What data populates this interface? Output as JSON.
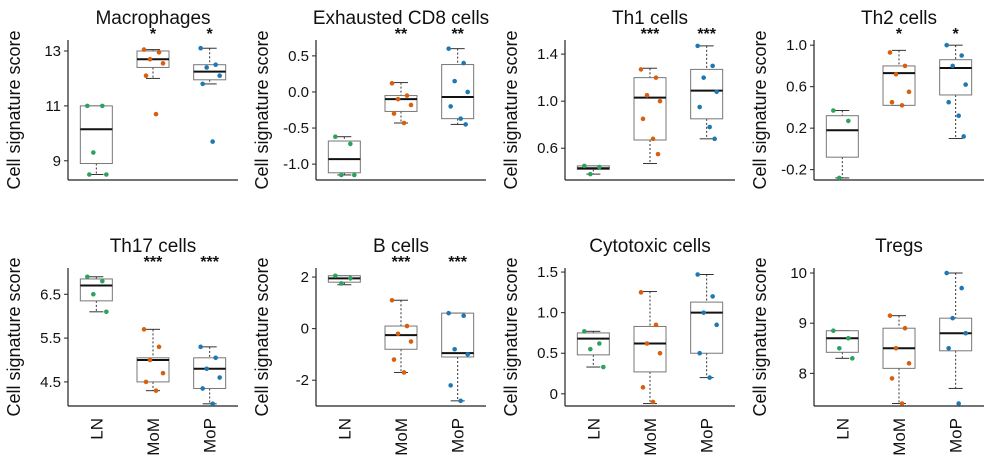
{
  "figure": {
    "y_axis_label": "Cell signature score",
    "categories": [
      "LN",
      "MoM",
      "MoP"
    ],
    "group_colors": {
      "LN": "#2ca25f",
      "MoM": "#d95f0e",
      "MoP": "#1f78b4"
    }
  },
  "chart_data": [
    {
      "type": "box",
      "title": "Macrophages",
      "ylabel": "Cell signature score",
      "ylim": [
        8.3,
        13.4
      ],
      "yticks": [
        "9",
        "11",
        "13"
      ],
      "significance": [
        "",
        "*",
        "*"
      ],
      "boxes": [
        {
          "category": "LN",
          "min": 8.5,
          "q1": 8.9,
          "median": 10.15,
          "q3": 11.0,
          "max": 11.0,
          "points": [
            11.0,
            11.0,
            9.3,
            8.5,
            8.5
          ]
        },
        {
          "category": "MoM",
          "min": 12.0,
          "q1": 12.4,
          "median": 12.7,
          "q3": 13.0,
          "max": 13.05,
          "points": [
            13.05,
            12.95,
            12.7,
            12.55,
            12.1,
            10.7
          ]
        },
        {
          "category": "MoP",
          "min": 11.8,
          "q1": 11.95,
          "median": 12.25,
          "q3": 12.5,
          "max": 13.1,
          "points": [
            13.1,
            12.5,
            12.4,
            12.1,
            11.8,
            9.7
          ]
        }
      ]
    },
    {
      "type": "box",
      "title": "Exhausted CD8 cells",
      "ylabel": "Cell signature score",
      "ylim": [
        -1.22,
        0.72
      ],
      "yticks": [
        "-1.0",
        "-0.5",
        "0.0",
        "0.5"
      ],
      "significance": [
        "",
        "**",
        "**"
      ],
      "boxes": [
        {
          "category": "LN",
          "min": -1.15,
          "q1": -1.12,
          "median": -0.93,
          "q3": -0.68,
          "max": -0.62,
          "points": [
            -0.62,
            -0.72,
            -1.15,
            -1.15
          ]
        },
        {
          "category": "MoM",
          "min": -0.43,
          "q1": -0.27,
          "median": -0.1,
          "q3": -0.05,
          "max": 0.13,
          "points": [
            0.12,
            -0.05,
            -0.1,
            -0.18,
            -0.3,
            -0.43
          ]
        },
        {
          "category": "MoP",
          "min": -0.45,
          "q1": -0.37,
          "median": -0.07,
          "q3": 0.38,
          "max": 0.6,
          "points": [
            0.6,
            0.4,
            0.15,
            0.0,
            -0.2,
            -0.37,
            -0.45
          ]
        }
      ]
    },
    {
      "type": "box",
      "title": "Th1 cells",
      "ylabel": "Cell signature score",
      "ylim": [
        0.33,
        1.52
      ],
      "yticks": [
        "0.6",
        "1.0",
        "1.4"
      ],
      "significance": [
        "",
        "***",
        "***"
      ],
      "boxes": [
        {
          "category": "LN",
          "min": 0.38,
          "q1": 0.42,
          "median": 0.43,
          "q3": 0.45,
          "max": 0.45,
          "points": [
            0.45,
            0.44,
            0.38
          ]
        },
        {
          "category": "MoM",
          "min": 0.47,
          "q1": 0.67,
          "median": 1.03,
          "q3": 1.2,
          "max": 1.28,
          "points": [
            1.27,
            1.2,
            1.05,
            1.0,
            0.85,
            0.68,
            0.55
          ]
        },
        {
          "category": "MoP",
          "min": 0.68,
          "q1": 0.85,
          "median": 1.09,
          "q3": 1.27,
          "max": 1.47,
          "points": [
            1.47,
            1.3,
            1.2,
            1.08,
            0.95,
            0.78,
            0.68
          ]
        }
      ]
    },
    {
      "type": "box",
      "title": "Th2 cells",
      "ylabel": "Cell signature score",
      "ylim": [
        -0.3,
        1.05
      ],
      "yticks": [
        "-0.2",
        "0.2",
        "0.6",
        "1.0"
      ],
      "significance": [
        "",
        "*",
        "*"
      ],
      "boxes": [
        {
          "category": "LN",
          "min": -0.28,
          "q1": -0.08,
          "median": 0.18,
          "q3": 0.32,
          "max": 0.37,
          "points": [
            0.37,
            0.27,
            -0.28
          ]
        },
        {
          "category": "MoM",
          "min": 0.42,
          "q1": 0.42,
          "median": 0.73,
          "q3": 0.8,
          "max": 0.95,
          "points": [
            0.93,
            0.8,
            0.72,
            0.55,
            0.45,
            0.42
          ]
        },
        {
          "category": "MoP",
          "min": 0.1,
          "q1": 0.52,
          "median": 0.78,
          "q3": 0.86,
          "max": 1.0,
          "points": [
            1.0,
            0.9,
            0.8,
            0.62,
            0.45,
            0.32,
            0.12
          ]
        }
      ]
    },
    {
      "type": "box",
      "title": "Th17 cells",
      "ylabel": "Cell signature score",
      "ylim": [
        3.95,
        7.1
      ],
      "yticks": [
        "4.5",
        "5.5",
        "6.5"
      ],
      "significance": [
        "",
        "***",
        "***"
      ],
      "boxes": [
        {
          "category": "LN",
          "min": 6.1,
          "q1": 6.35,
          "median": 6.7,
          "q3": 6.85,
          "max": 6.9,
          "points": [
            6.9,
            6.8,
            6.5,
            6.1
          ]
        },
        {
          "category": "MoM",
          "min": 4.3,
          "q1": 4.5,
          "median": 5.0,
          "q3": 5.05,
          "max": 5.7,
          "points": [
            5.7,
            5.3,
            5.0,
            4.7,
            4.5,
            4.3
          ]
        },
        {
          "category": "MoP",
          "min": 4.0,
          "q1": 4.35,
          "median": 4.8,
          "q3": 5.05,
          "max": 5.3,
          "points": [
            5.3,
            5.05,
            4.8,
            4.6,
            4.35,
            4.0
          ]
        }
      ]
    },
    {
      "type": "box",
      "title": "B cells",
      "ylabel": "Cell signature score",
      "ylim": [
        -3.0,
        2.35
      ],
      "yticks": [
        "-2",
        "0",
        "2"
      ],
      "significance": [
        "",
        "***",
        "***"
      ],
      "boxes": [
        {
          "category": "LN",
          "min": 1.7,
          "q1": 1.8,
          "median": 1.95,
          "q3": 2.05,
          "max": 2.05,
          "points": [
            2.05,
            1.95,
            1.75
          ]
        },
        {
          "category": "MoM",
          "min": -1.7,
          "q1": -0.8,
          "median": -0.25,
          "q3": 0.1,
          "max": 1.1,
          "points": [
            1.1,
            0.1,
            -0.2,
            -0.5,
            -1.2,
            -1.7
          ]
        },
        {
          "category": "MoP",
          "min": -2.8,
          "q1": -1.1,
          "median": -0.95,
          "q3": 0.6,
          "max": 0.6,
          "points": [
            0.6,
            0.5,
            -0.8,
            -1.0,
            -2.2,
            -2.8
          ]
        }
      ]
    },
    {
      "type": "box",
      "title": "Cytotoxic cells",
      "ylabel": "Cell signature score",
      "ylim": [
        -0.15,
        1.55
      ],
      "yticks": [
        "0",
        "0.5",
        "1.0",
        "1.5"
      ],
      "significance": [
        "",
        "",
        ""
      ],
      "boxes": [
        {
          "category": "LN",
          "min": 0.33,
          "q1": 0.48,
          "median": 0.68,
          "q3": 0.75,
          "max": 0.77,
          "points": [
            0.77,
            0.62,
            0.55,
            0.33
          ]
        },
        {
          "category": "MoM",
          "min": -0.12,
          "q1": 0.27,
          "median": 0.62,
          "q3": 0.83,
          "max": 1.26,
          "points": [
            1.25,
            0.85,
            0.62,
            0.5,
            0.08,
            -0.1
          ]
        },
        {
          "category": "MoP",
          "min": 0.2,
          "q1": 0.5,
          "median": 1.0,
          "q3": 1.13,
          "max": 1.47,
          "points": [
            1.47,
            1.2,
            1.0,
            0.85,
            0.5,
            0.2
          ]
        }
      ]
    },
    {
      "type": "box",
      "title": "Tregs",
      "ylabel": "Cell signature score",
      "ylim": [
        7.35,
        10.1
      ],
      "yticks": [
        "8",
        "9",
        "10"
      ],
      "significance": [
        "",
        "",
        ""
      ],
      "boxes": [
        {
          "category": "LN",
          "min": 8.3,
          "q1": 8.42,
          "median": 8.7,
          "q3": 8.85,
          "max": 8.85,
          "points": [
            8.85,
            8.7,
            8.5,
            8.3
          ]
        },
        {
          "category": "MoM",
          "min": 7.4,
          "q1": 8.1,
          "median": 8.5,
          "q3": 8.9,
          "max": 9.15,
          "points": [
            9.15,
            8.9,
            8.5,
            8.2,
            7.9,
            7.4
          ]
        },
        {
          "category": "MoP",
          "min": 7.7,
          "q1": 8.45,
          "median": 8.8,
          "q3": 9.1,
          "max": 10.0,
          "points": [
            10.0,
            9.7,
            9.1,
            8.8,
            8.5,
            7.4
          ]
        }
      ]
    }
  ]
}
